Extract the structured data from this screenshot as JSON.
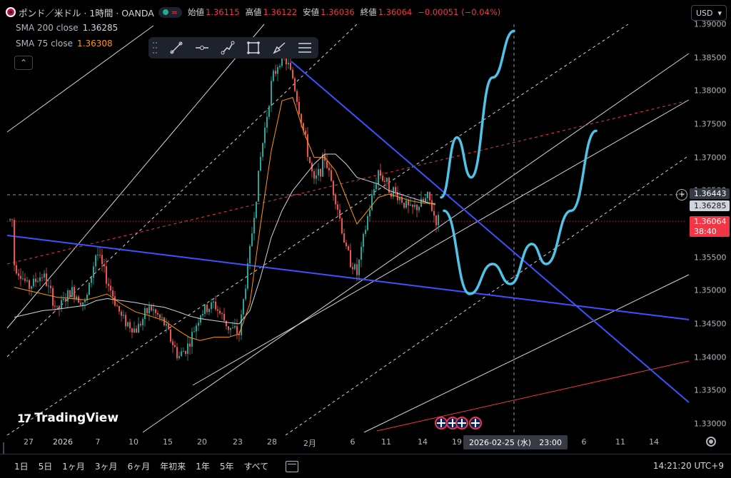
{
  "header": {
    "symbol": "ポンド／米ドル · 1時間 · OANDA",
    "status_icon": "wave-icon",
    "ohlc": [
      {
        "key": "始値",
        "value": "1.36115"
      },
      {
        "key": "高値",
        "value": "1.36122"
      },
      {
        "key": "安値",
        "value": "1.36036"
      },
      {
        "key": "終値",
        "value": "1.36064"
      }
    ],
    "change": "−0.00051 (−0.04%)"
  },
  "indicators": [
    {
      "label": "SMA 200 close",
      "value": "1.36285",
      "color": "#d1d4dc"
    },
    {
      "label": "SMA 75 close",
      "value": "1.36308",
      "color": "#ff9800"
    }
  ],
  "currency": "USD",
  "drawing_tools": [
    "trend-line-icon",
    "horizontal-ray-icon",
    "path-icon",
    "rectangle-icon",
    "brush-icon",
    "parallel-channel-icon"
  ],
  "price_axis": {
    "ticks": [
      "1.39000",
      "1.38500",
      "1.38000",
      "1.37500",
      "1.37000",
      "1.36500",
      "1.36000",
      "1.35500",
      "1.35000",
      "1.34500",
      "1.34000",
      "1.33500",
      "1.33000"
    ],
    "crosshair_price": "1.36443",
    "sma_badge": "1.36285",
    "last_price": "1.36064",
    "countdown": "38:40"
  },
  "time_axis": {
    "ticks": [
      "27",
      "2026",
      "7",
      "10",
      "15",
      "20",
      "23",
      "28",
      "2月",
      "6",
      "11",
      "14",
      "19",
      "6",
      "11",
      "14"
    ],
    "crosshair_date": "2026-02-25 (水)",
    "crosshair_time": "23:00"
  },
  "branding": {
    "name": "TradingView"
  },
  "bottom": {
    "periods": [
      "1日",
      "5日",
      "1ヶ月",
      "3ヶ月",
      "6ヶ月",
      "年初来",
      "1年",
      "5年",
      "すべて"
    ],
    "clock": "14:21:20 UTC+9"
  },
  "colors": {
    "up": "#26a69a",
    "down": "#ef5350",
    "sma75": "#ff9800",
    "sma200": "#d1d4dc",
    "trend": "#3f51ff",
    "prediction": "#4fc3e8",
    "red_line": "#f23645"
  },
  "chart_data": {
    "type": "candlestick",
    "title": "ポンド／米ドル · 1時間 · OANDA",
    "ylim": [
      1.3285,
      1.3905
    ],
    "x_range": [
      0,
      955
    ],
    "x": [
      20,
      40,
      60,
      80,
      100,
      120,
      135,
      150,
      170,
      190,
      210,
      230,
      250,
      265,
      280,
      300,
      320,
      335,
      350,
      365,
      380,
      395,
      410,
      425,
      440,
      455,
      470,
      485,
      500,
      515,
      530,
      545,
      560,
      575,
      590,
      600,
      610
    ],
    "close": [
      1.354,
      1.3505,
      1.3525,
      1.347,
      1.35,
      1.348,
      1.356,
      1.3515,
      1.346,
      1.344,
      1.3475,
      1.345,
      1.34,
      1.342,
      1.3465,
      1.348,
      1.3445,
      1.3435,
      1.356,
      1.37,
      1.381,
      1.386,
      1.382,
      1.374,
      1.366,
      1.37,
      1.364,
      1.356,
      1.3525,
      1.361,
      1.368,
      1.3655,
      1.364,
      1.362,
      1.363,
      1.364,
      1.3606
    ],
    "sma75": [
      1.3505,
      1.35,
      1.3495,
      1.349,
      1.3488,
      1.3486,
      1.349,
      1.3495,
      1.348,
      1.3468,
      1.3462,
      1.3455,
      1.344,
      1.343,
      1.3425,
      1.343,
      1.343,
      1.3435,
      1.348,
      1.36,
      1.371,
      1.3785,
      1.379,
      1.374,
      1.37,
      1.37,
      1.368,
      1.364,
      1.36,
      1.362,
      1.364,
      1.3645,
      1.364,
      1.3635,
      1.3632,
      1.3631,
      1.3631
    ],
    "sma200": [
      1.346,
      1.3465,
      1.347,
      1.3472,
      1.3475,
      1.3478,
      1.3485,
      1.3488,
      1.3485,
      1.3482,
      1.3478,
      1.3475,
      1.3468,
      1.3462,
      1.3458,
      1.3455,
      1.3452,
      1.345,
      1.347,
      1.352,
      1.358,
      1.362,
      1.365,
      1.367,
      1.369,
      1.3705,
      1.3705,
      1.369,
      1.367,
      1.3665,
      1.366,
      1.365,
      1.3645,
      1.364,
      1.3635,
      1.3632,
      1.3629
    ],
    "prediction_paths": [
      [
        [
          618,
          1.364
        ],
        [
          640,
          1.373
        ],
        [
          660,
          1.367
        ],
        [
          690,
          1.382
        ],
        [
          720,
          1.389
        ]
      ],
      [
        [
          622,
          1.362
        ],
        [
          658,
          1.3495
        ],
        [
          690,
          1.354
        ],
        [
          715,
          1.351
        ],
        [
          745,
          1.357
        ],
        [
          765,
          1.354
        ],
        [
          800,
          1.362
        ],
        [
          835,
          1.374
        ]
      ]
    ]
  }
}
